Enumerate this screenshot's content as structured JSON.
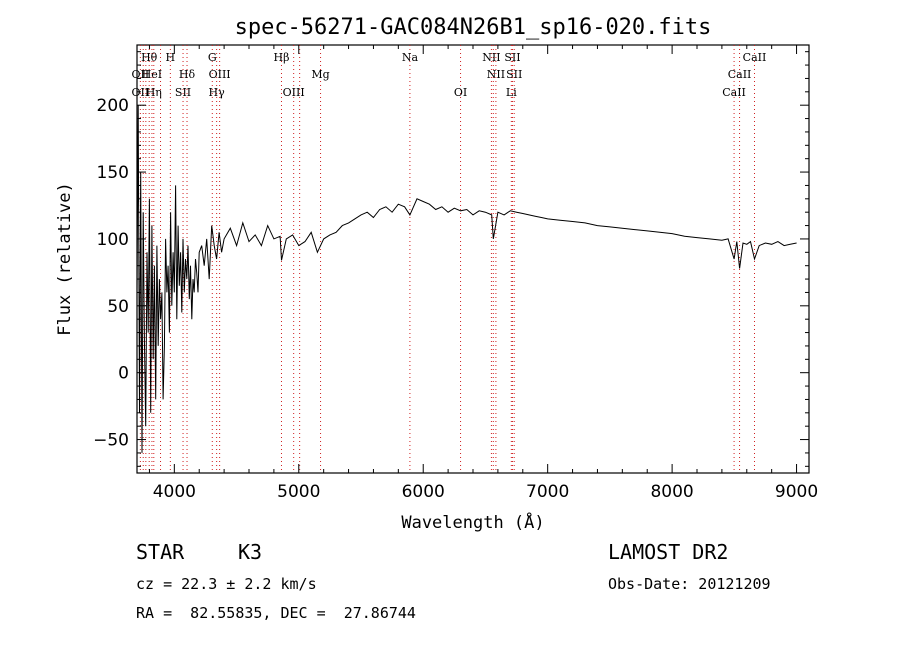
{
  "chart_data": {
    "type": "line",
    "title": "spec-56271-GAC084N26B1_sp16-020.fits",
    "xlabel": "Wavelength (Å)",
    "ylabel": "Flux (relative)",
    "xlim": [
      3700,
      9100
    ],
    "ylim": [
      -75,
      245
    ],
    "xticks": [
      4000,
      5000,
      6000,
      7000,
      8000,
      9000
    ],
    "xtick_labels": [
      "4000",
      "5000",
      "6000",
      "7000",
      "8000",
      "9000"
    ],
    "yticks": [
      -50,
      0,
      50,
      100,
      150,
      200
    ],
    "ytick_labels": [
      "−50",
      "0",
      "50",
      "100",
      "150",
      "200"
    ],
    "grid": false,
    "series": [
      {
        "x": [
          3700,
          3710,
          3720,
          3730,
          3740,
          3750,
          3760,
          3770,
          3780,
          3790,
          3800,
          3810,
          3820,
          3830,
          3840,
          3850,
          3860,
          3870,
          3880,
          3890,
          3900,
          3910,
          3920,
          3930,
          3940,
          3950,
          3960,
          3970,
          3980,
          3990,
          4000,
          4010,
          4020,
          4030,
          4040,
          4050,
          4060,
          4070,
          4080,
          4090,
          4100,
          4110,
          4120,
          4130,
          4140,
          4150,
          4160,
          4170,
          4180,
          4190,
          4200,
          4220,
          4240,
          4260,
          4280,
          4300,
          4320,
          4340,
          4360,
          4380,
          4400,
          4450,
          4500,
          4550,
          4600,
          4650,
          4700,
          4750,
          4800,
          4850,
          4861,
          4900,
          4950,
          5000,
          5050,
          5100,
          5150,
          5200,
          5250,
          5300,
          5350,
          5400,
          5450,
          5500,
          5550,
          5600,
          5650,
          5700,
          5750,
          5800,
          5850,
          5893,
          5950,
          6000,
          6050,
          6100,
          6150,
          6200,
          6250,
          6300,
          6350,
          6400,
          6450,
          6500,
          6550,
          6563,
          6600,
          6650,
          6700,
          6750,
          6800,
          6850,
          6900,
          6950,
          7000,
          7100,
          7200,
          7300,
          7400,
          7500,
          7600,
          7700,
          7800,
          7900,
          8000,
          8100,
          8200,
          8300,
          8400,
          8450,
          8498,
          8520,
          8542,
          8570,
          8600,
          8630,
          8662,
          8700,
          8750,
          8800,
          8850,
          8900,
          8950,
          9000
        ],
        "y": [
          60,
          200,
          -30,
          150,
          -60,
          120,
          20,
          -40,
          90,
          30,
          130,
          -30,
          110,
          10,
          80,
          -20,
          95,
          20,
          70,
          40,
          60,
          -20,
          20,
          100,
          60,
          80,
          30,
          120,
          50,
          90,
          60,
          140,
          40,
          110,
          65,
          90,
          45,
          100,
          60,
          85,
          70,
          95,
          55,
          80,
          40,
          70,
          60,
          85,
          75,
          60,
          90,
          95,
          80,
          100,
          70,
          110,
          95,
          85,
          105,
          90,
          100,
          108,
          95,
          112,
          98,
          103,
          95,
          110,
          100,
          102,
          84,
          100,
          103,
          95,
          98,
          105,
          90,
          100,
          103,
          105,
          110,
          112,
          115,
          118,
          120,
          116,
          122,
          124,
          120,
          126,
          124,
          118,
          130,
          128,
          126,
          122,
          124,
          120,
          123,
          121,
          122,
          118,
          121,
          120,
          118,
          100,
          120,
          118,
          121,
          120,
          119,
          118,
          117,
          116,
          115,
          114,
          113,
          112,
          110,
          109,
          108,
          107,
          106,
          105,
          104,
          102,
          101,
          100,
          99,
          100,
          85,
          98,
          78,
          97,
          96,
          98,
          85,
          95,
          97,
          96,
          98,
          95,
          96,
          97
        ]
      }
    ],
    "line_labels": [
      {
        "text": "Hθ",
        "wl": 3798,
        "row": 1
      },
      {
        "text": "OII",
        "wl": 3727,
        "row": 2
      },
      {
        "text": "HeI",
        "wl": 3820,
        "row": 2
      },
      {
        "text": "OII",
        "wl": 3727,
        "row": 3
      },
      {
        "text": "Hη",
        "wl": 3835,
        "row": 3
      },
      {
        "text": "H",
        "wl": 3968,
        "row": 1
      },
      {
        "text": "Hδ",
        "wl": 4102,
        "row": 2
      },
      {
        "text": "SII",
        "wl": 4070,
        "row": 3
      },
      {
        "text": "G",
        "wl": 4305,
        "row": 1
      },
      {
        "text": "OIII",
        "wl": 4364,
        "row": 2
      },
      {
        "text": "Hγ",
        "wl": 4340,
        "row": 3
      },
      {
        "text": "Hβ",
        "wl": 4861,
        "row": 1
      },
      {
        "text": "OIII",
        "wl": 4959,
        "row": 3
      },
      {
        "text": "Mg",
        "wl": 5175,
        "row": 2
      },
      {
        "text": "Na",
        "wl": 5893,
        "row": 1
      },
      {
        "text": "OI",
        "wl": 6300,
        "row": 3
      },
      {
        "text": "NII",
        "wl": 6548,
        "row": 1
      },
      {
        "text": "NII",
        "wl": 6584,
        "row": 2
      },
      {
        "text": "SII",
        "wl": 6717,
        "row": 1
      },
      {
        "text": "SII",
        "wl": 6731,
        "row": 2
      },
      {
        "text": "Li",
        "wl": 6708,
        "row": 3
      },
      {
        "text": "CaII",
        "wl": 8662,
        "row": 1
      },
      {
        "text": "CaII",
        "wl": 8542,
        "row": 2
      },
      {
        "text": "CaII",
        "wl": 8498,
        "row": 3
      }
    ],
    "marker_lines": [
      3727,
      3750,
      3771,
      3798,
      3820,
      3835,
      3889,
      3968,
      4070,
      4102,
      4305,
      4340,
      4364,
      4861,
      4959,
      5007,
      5175,
      5893,
      6300,
      6548,
      6563,
      6584,
      6708,
      6717,
      6731,
      8498,
      8542,
      8662
    ]
  },
  "info": {
    "object_type": "STAR",
    "subclass": "K3",
    "survey": "LAMOST DR2",
    "cz": "cz = 22.3 ± 2.2 km/s",
    "obs_date": "Obs-Date: 20121209",
    "coords": "RA =  82.55835, DEC =  27.86744"
  }
}
